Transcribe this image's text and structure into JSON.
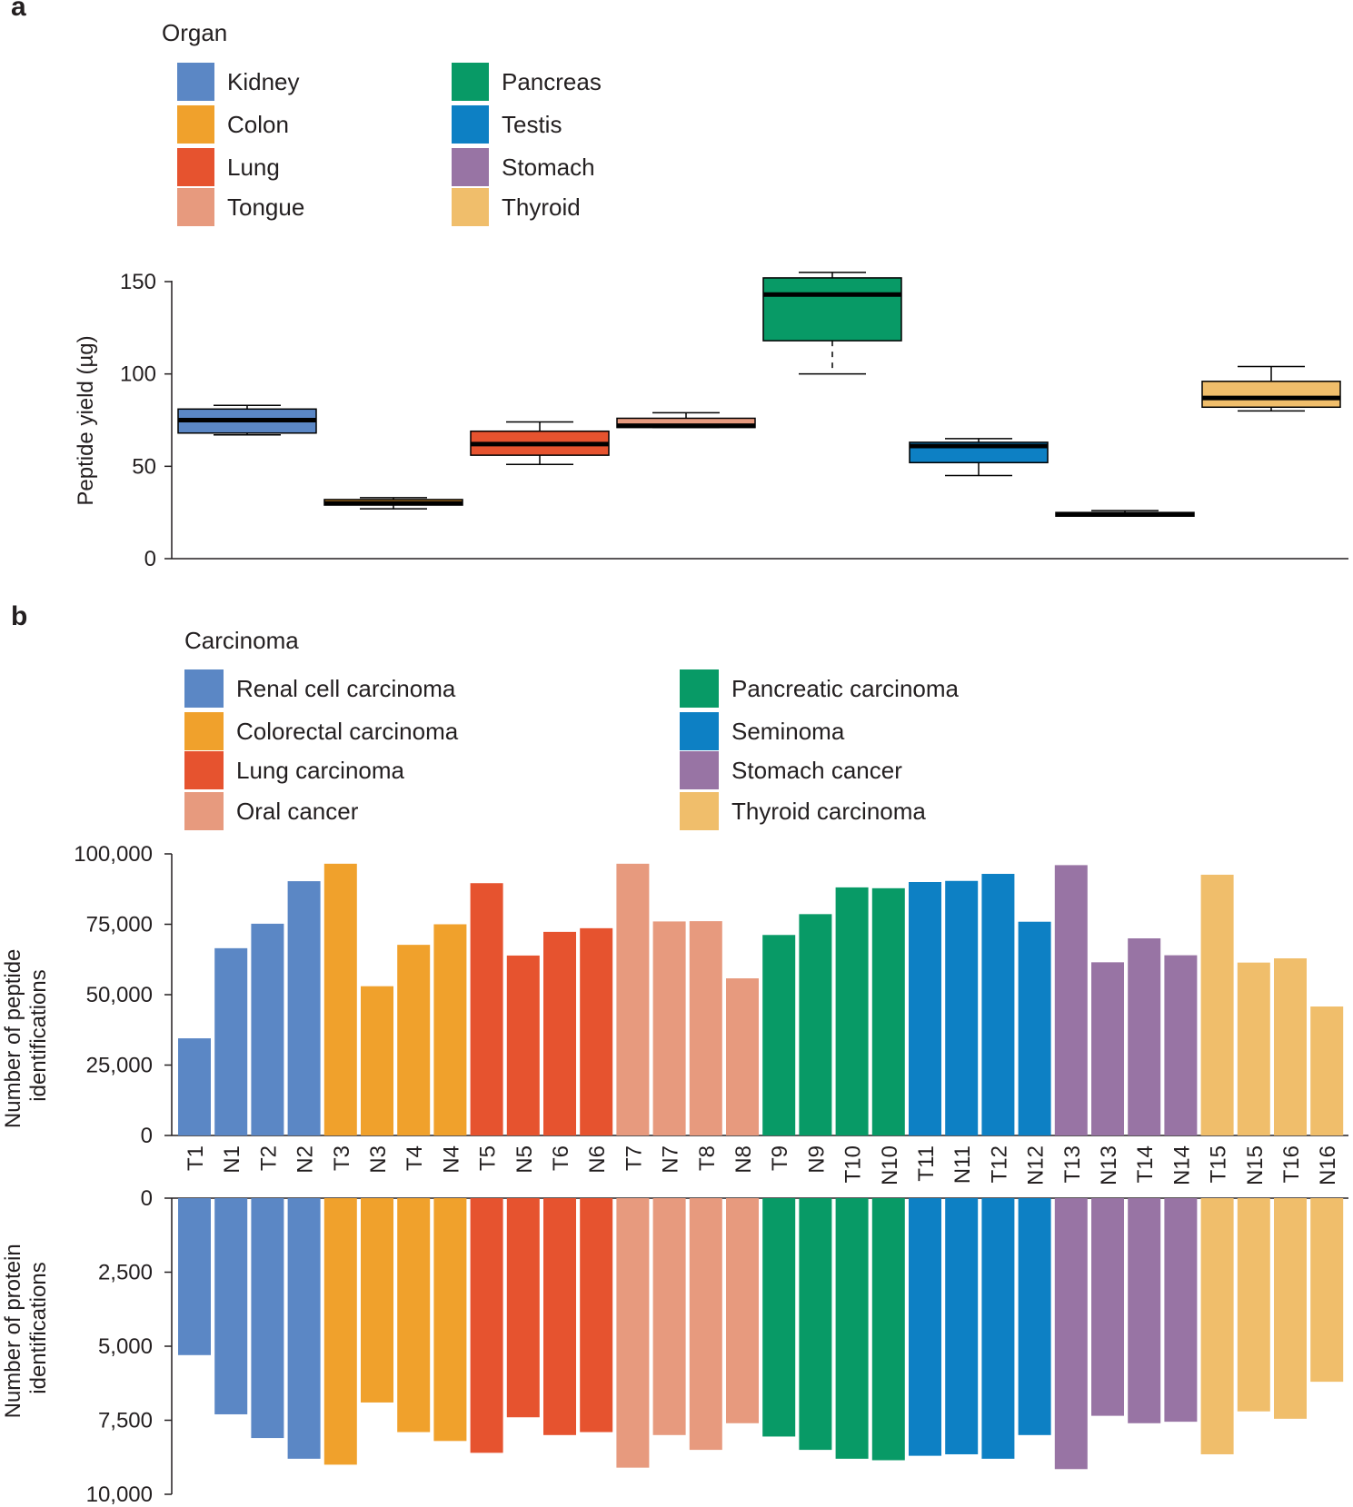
{
  "figure": {
    "panel_a_letter": "a",
    "panel_b_letter": "b"
  },
  "legend_a": {
    "title": "Organ",
    "items": [
      {
        "label": "Kidney",
        "color": "#5b87c5"
      },
      {
        "label": "Colon",
        "color": "#f0a12c"
      },
      {
        "label": "Lung",
        "color": "#e6532f"
      },
      {
        "label": "Tongue",
        "color": "#e79a7e"
      },
      {
        "label": "Pancreas",
        "color": "#089a66"
      },
      {
        "label": "Testis",
        "color": "#0d80c4"
      },
      {
        "label": "Stomach",
        "color": "#9874a4"
      },
      {
        "label": "Thyroid",
        "color": "#f0be6b"
      }
    ]
  },
  "legend_b": {
    "title": "Carcinoma",
    "items": [
      {
        "label": "Renal cell carcinoma",
        "color": "#5b87c5"
      },
      {
        "label": "Colorectal carcinoma",
        "color": "#f0a12c"
      },
      {
        "label": "Lung carcinoma",
        "color": "#e6532f"
      },
      {
        "label": "Oral cancer",
        "color": "#e79a7e"
      },
      {
        "label": "Pancreatic carcinoma",
        "color": "#089a66"
      },
      {
        "label": "Seminoma",
        "color": "#0d80c4"
      },
      {
        "label": "Stomach cancer",
        "color": "#9874a4"
      },
      {
        "label": "Thyroid carcinoma",
        "color": "#f0be6b"
      }
    ]
  },
  "chart_data": [
    {
      "type": "box",
      "title": "",
      "xlabel": "",
      "ylabel": "Peptide yield (µg)",
      "ylim": [
        0,
        150
      ],
      "yticks": [
        "0",
        "50",
        "100",
        "150"
      ],
      "ytick_values": [
        0,
        50,
        100,
        150
      ],
      "boxes": [
        {
          "name": "Kidney",
          "color": "#5b87c5",
          "whisker_low": 67,
          "q1": 68,
          "median": 75,
          "q3": 81,
          "whisker_high": 83
        },
        {
          "name": "Colon",
          "color": "#f0a12c",
          "whisker_low": 27,
          "q1": 29,
          "median": 30,
          "q3": 32,
          "whisker_high": 33
        },
        {
          "name": "Lung",
          "color": "#e6532f",
          "whisker_low": 51,
          "q1": 56,
          "median": 62,
          "q3": 69,
          "whisker_high": 74
        },
        {
          "name": "Tongue",
          "color": "#e79a7e",
          "whisker_low": 71,
          "q1": 71,
          "median": 72,
          "q3": 76,
          "whisker_high": 79
        },
        {
          "name": "Pancreas",
          "color": "#089a66",
          "whisker_low": 100,
          "q1": 118,
          "median": 143,
          "q3": 152,
          "whisker_high": 155
        },
        {
          "name": "Testis",
          "color": "#0d80c4",
          "whisker_low": 45,
          "q1": 52,
          "median": 61,
          "q3": 63,
          "whisker_high": 65
        },
        {
          "name": "Stomach",
          "color": "#9874a4",
          "whisker_low": 23,
          "q1": 23,
          "median": 24,
          "q3": 25,
          "whisker_high": 26
        },
        {
          "name": "Thyroid",
          "color": "#f0be6b",
          "whisker_low": 80,
          "q1": 82,
          "median": 87,
          "q3": 96,
          "whisker_high": 104
        }
      ]
    },
    {
      "type": "bar",
      "title": "",
      "xlabel": "",
      "ylabel": "Number of peptide identifications",
      "ylim": [
        0,
        100000
      ],
      "yticks": [
        "0",
        "25,000",
        "50,000",
        "75,000",
        "100,000"
      ],
      "ytick_values": [
        0,
        25000,
        50000,
        75000,
        100000
      ],
      "categories": [
        "T1",
        "N1",
        "T2",
        "N2",
        "T3",
        "N3",
        "T4",
        "N4",
        "T5",
        "N5",
        "T6",
        "N6",
        "T7",
        "N7",
        "T8",
        "N8",
        "T9",
        "N9",
        "T10",
        "N10",
        "T11",
        "N11",
        "T12",
        "N12",
        "T13",
        "N13",
        "T14",
        "N14",
        "T15",
        "N15",
        "T16",
        "N16"
      ],
      "values": [
        34500,
        66500,
        75200,
        90300,
        96500,
        53000,
        67700,
        75000,
        89600,
        63900,
        72300,
        73600,
        96500,
        76000,
        76100,
        55800,
        71200,
        78600,
        88100,
        87800,
        90000,
        90400,
        92900,
        75900,
        96000,
        61500,
        70000,
        64000,
        92600,
        61400,
        62900,
        45800
      ],
      "colors": [
        "#5b87c5",
        "#5b87c5",
        "#5b87c5",
        "#5b87c5",
        "#f0a12c",
        "#f0a12c",
        "#f0a12c",
        "#f0a12c",
        "#e6532f",
        "#e6532f",
        "#e6532f",
        "#e6532f",
        "#e79a7e",
        "#e79a7e",
        "#e79a7e",
        "#e79a7e",
        "#089a66",
        "#089a66",
        "#089a66",
        "#089a66",
        "#0d80c4",
        "#0d80c4",
        "#0d80c4",
        "#0d80c4",
        "#9874a4",
        "#9874a4",
        "#9874a4",
        "#9874a4",
        "#f0be6b",
        "#f0be6b",
        "#f0be6b",
        "#f0be6b"
      ]
    },
    {
      "type": "bar",
      "orientation": "downward",
      "title": "",
      "xlabel": "",
      "ylabel": "Number of protein identifications",
      "ylim": [
        0,
        10000
      ],
      "yticks": [
        "0",
        "2,500",
        "5,000",
        "7,500",
        "10,000"
      ],
      "ytick_values": [
        0,
        2500,
        5000,
        7500,
        10000
      ],
      "categories": [
        "T1",
        "N1",
        "T2",
        "N2",
        "T3",
        "N3",
        "T4",
        "N4",
        "T5",
        "N5",
        "T6",
        "N6",
        "T7",
        "N7",
        "T8",
        "N8",
        "T9",
        "N9",
        "T10",
        "N10",
        "T11",
        "N11",
        "T12",
        "N12",
        "T13",
        "N13",
        "T14",
        "N14",
        "T15",
        "N15",
        "T16",
        "N16"
      ],
      "values": [
        5300,
        7300,
        8100,
        8800,
        9000,
        6900,
        7900,
        8200,
        8600,
        7400,
        8000,
        7900,
        9100,
        8000,
        8500,
        7600,
        8050,
        8500,
        8800,
        8850,
        8700,
        8650,
        8800,
        8000,
        9150,
        7350,
        7600,
        7550,
        8650,
        7200,
        7450,
        6200
      ],
      "colors": [
        "#5b87c5",
        "#5b87c5",
        "#5b87c5",
        "#5b87c5",
        "#f0a12c",
        "#f0a12c",
        "#f0a12c",
        "#f0a12c",
        "#e6532f",
        "#e6532f",
        "#e6532f",
        "#e6532f",
        "#e79a7e",
        "#e79a7e",
        "#e79a7e",
        "#e79a7e",
        "#089a66",
        "#089a66",
        "#089a66",
        "#089a66",
        "#0d80c4",
        "#0d80c4",
        "#0d80c4",
        "#0d80c4",
        "#9874a4",
        "#9874a4",
        "#9874a4",
        "#9874a4",
        "#f0be6b",
        "#f0be6b",
        "#f0be6b",
        "#f0be6b"
      ]
    }
  ]
}
